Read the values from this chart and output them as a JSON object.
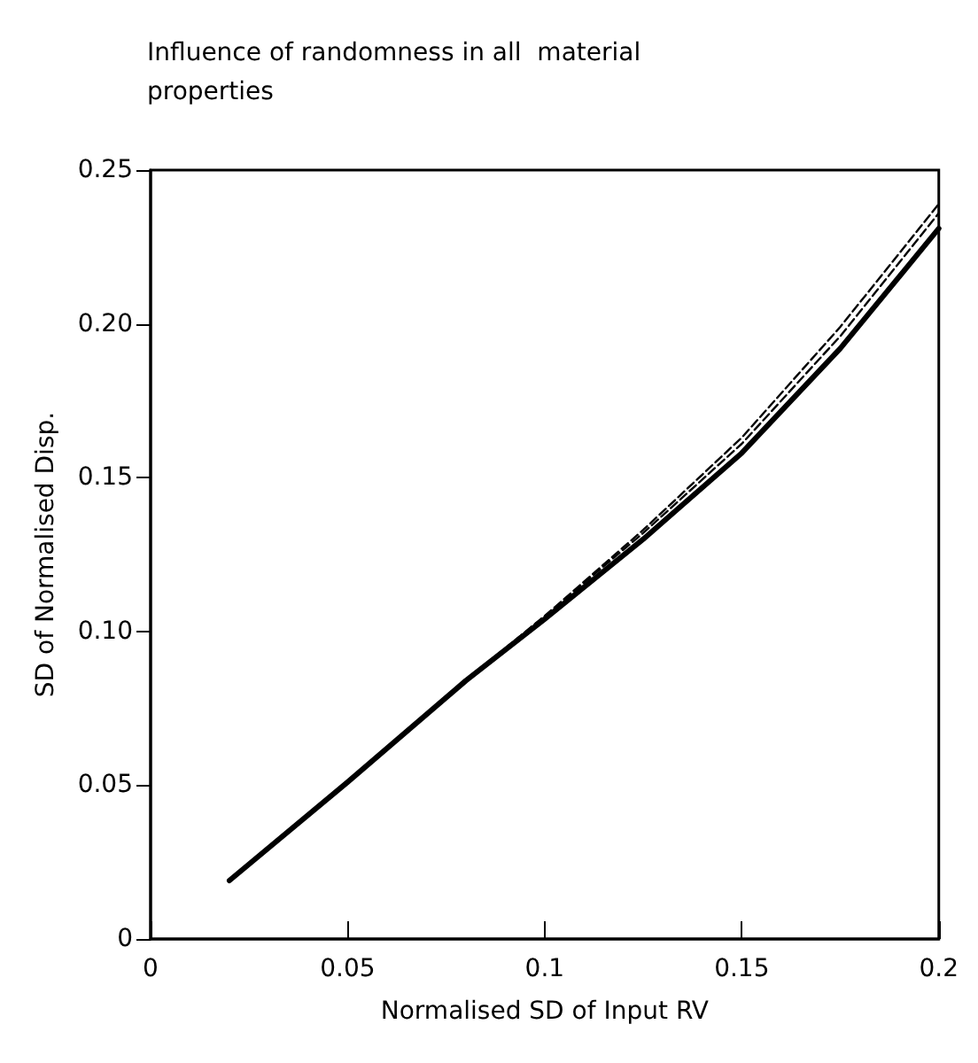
{
  "chart_data": {
    "type": "line",
    "title": "Influence of randomness in all  material\nproperties",
    "xlabel": "Normalised SD of Input RV",
    "ylabel": "SD of Normalised Disp.",
    "xlim": [
      0,
      0.2
    ],
    "ylim": [
      0,
      0.25
    ],
    "xticks": [
      0,
      0.05,
      0.1,
      0.15,
      0.2
    ],
    "yticks": [
      0,
      0.05,
      {
        "value": 0.1,
        "label": "0.10"
      },
      0.15,
      {
        "value": 0.2,
        "label": "0.20"
      },
      0.25
    ],
    "marker": "none",
    "series": [
      {
        "color": "#000000",
        "line_style": "solid",
        "x": [
          0.02,
          0.05,
          0.08,
          0.1,
          0.125,
          0.15,
          0.175,
          0.2
        ],
        "values": [
          0.019,
          0.051,
          0.084,
          0.104,
          0.13,
          0.158,
          0.192,
          0.231
        ]
      },
      {
        "color": "#000000",
        "line_style": "dashed",
        "x": [
          0.08,
          0.1,
          0.125,
          0.15,
          0.175,
          0.2
        ],
        "values": [
          0.084,
          0.105,
          0.132,
          0.161,
          0.196,
          0.236
        ]
      },
      {
        "color": "#000000",
        "line_style": "dashed",
        "x": [
          0.08,
          0.1,
          0.125,
          0.15,
          0.175,
          0.2
        ],
        "values": [
          0.084,
          0.105,
          0.133,
          0.163,
          0.199,
          0.239
        ]
      }
    ]
  }
}
